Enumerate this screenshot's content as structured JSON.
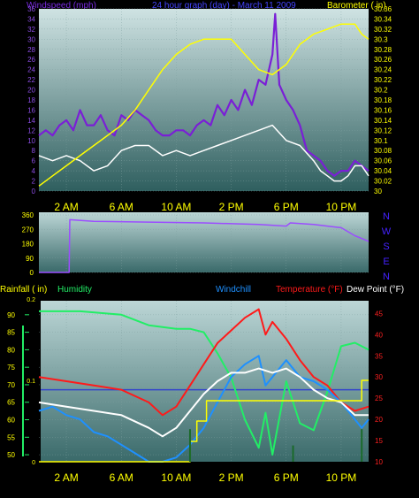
{
  "header": {
    "left": "Windspeed (mph)",
    "center": "24 hour graph (day) - March 11 2009",
    "right": "Barometer ( in)"
  },
  "colors": {
    "wind": "#8a2be2",
    "gust": "#7a1fd6",
    "wind_avg": "#ffffff",
    "barometer": "#ffff00",
    "direction": "#9b4dff",
    "humidity": "#22ee66",
    "windchill": "#1e90ff",
    "temperature": "#ff1a1a",
    "dewpoint": "#ffffff",
    "rain": "#ffff00",
    "ref_line": "#3344cc",
    "axis_text": "#ffff00",
    "grid": "#7fa0a0"
  },
  "x_axis": {
    "hours": [
      0,
      24
    ],
    "ticks": [
      {
        "h": 2,
        "label": "2 AM"
      },
      {
        "h": 6,
        "label": "6 AM"
      },
      {
        "h": 10,
        "label": "10 AM"
      },
      {
        "h": 14,
        "label": "2 PM"
      },
      {
        "h": 18,
        "label": "6 PM"
      },
      {
        "h": 22,
        "label": "10 PM"
      }
    ]
  },
  "chart_data": [
    {
      "type": "line",
      "name": "wind-barometer",
      "title": "24 hour graph (day) - March 11 2009",
      "ylabel_left": "Windspeed (mph)",
      "ylabel_right": "Barometer ( in)",
      "left_axis": {
        "ylim": [
          0,
          36
        ],
        "ticks": [
          "0",
          "2",
          "4",
          "6",
          "8",
          "10",
          "12",
          "14",
          "16",
          "18",
          "20",
          "22",
          "24",
          "26",
          "28",
          "30",
          "32",
          "34",
          "36"
        ]
      },
      "right_axis": {
        "ylim": [
          30.0,
          30.36
        ],
        "ticks": [
          "30",
          "30.02",
          "30.04",
          "30.06",
          "30.08",
          "30.1",
          "30.12",
          "30.14",
          "30.16",
          "30.18",
          "30.2",
          "30.22",
          "30.24",
          "30.26",
          "30.28",
          "30.3",
          "30.32",
          "30.34",
          "30.36"
        ]
      },
      "series": [
        {
          "key": "gust",
          "axis": "left",
          "x": [
            0,
            0.5,
            1,
            1.5,
            2,
            2.5,
            3,
            3.5,
            4,
            4.5,
            5,
            5.5,
            6,
            6.5,
            7,
            7.5,
            8,
            8.5,
            9,
            9.5,
            10,
            10.5,
            11,
            11.5,
            12,
            12.5,
            13,
            13.5,
            14,
            14.5,
            15,
            15.5,
            16,
            16.5,
            17,
            17.2,
            17.5,
            18,
            18.5,
            19,
            19.5,
            20,
            20.5,
            21,
            21.5,
            22,
            22.5,
            23,
            23.5,
            24
          ],
          "values": [
            11,
            12,
            11,
            13,
            14,
            12,
            16,
            13,
            13,
            15,
            12,
            11,
            15,
            14,
            16,
            15,
            14,
            12,
            11,
            11,
            12,
            12,
            11,
            13,
            14,
            13,
            17,
            15,
            18,
            16,
            20,
            17,
            22,
            21,
            27,
            35,
            21,
            18,
            16,
            13,
            8,
            7,
            6,
            4,
            3,
            4,
            4,
            6,
            5,
            4
          ]
        },
        {
          "key": "wind_avg",
          "axis": "left",
          "x": [
            0,
            1,
            2,
            3,
            4,
            5,
            6,
            7,
            8,
            9,
            10,
            11,
            12,
            13,
            14,
            15,
            16,
            17,
            18,
            19,
            20,
            20.5,
            21,
            21.5,
            22,
            22.5,
            23,
            23.5,
            24
          ],
          "values": [
            7,
            6,
            7,
            6,
            4,
            5,
            8,
            9,
            9,
            7,
            8,
            7,
            8,
            9,
            10,
            11,
            12,
            13,
            10,
            9,
            6,
            4,
            3,
            2,
            2,
            3,
            5,
            5,
            3
          ]
        },
        {
          "key": "barometer",
          "axis": "right",
          "x": [
            0,
            1,
            2,
            3,
            4,
            5,
            6,
            7,
            8,
            9,
            10,
            11,
            12,
            13,
            14,
            15,
            16,
            17,
            18,
            19,
            20,
            21,
            22,
            23,
            23.5,
            24
          ],
          "values": [
            30.01,
            30.03,
            30.05,
            30.07,
            30.09,
            30.11,
            30.13,
            30.16,
            30.2,
            30.24,
            30.27,
            30.29,
            30.3,
            30.3,
            30.3,
            30.27,
            30.24,
            30.23,
            30.25,
            30.29,
            30.31,
            30.32,
            30.33,
            30.33,
            30.31,
            30.3
          ]
        }
      ]
    },
    {
      "type": "line",
      "name": "wind-direction",
      "left_axis": {
        "ylim": [
          0,
          360
        ],
        "ticks": [
          "0",
          "90",
          "180",
          "270",
          "360"
        ]
      },
      "right_labels": [
        "N",
        "W",
        "S",
        "E",
        "N"
      ],
      "series": [
        {
          "key": "direction",
          "x": [
            0,
            2.2,
            2.25,
            4,
            8,
            12,
            16,
            18,
            18.3,
            20,
            21,
            22,
            23,
            24
          ],
          "values": [
            0,
            0,
            330,
            320,
            315,
            310,
            300,
            290,
            310,
            300,
            290,
            280,
            230,
            195
          ]
        }
      ]
    },
    {
      "type": "line",
      "name": "temp-humidity-rain",
      "labels": {
        "rain": "Rainfall ( in)",
        "humidity": "Humidity",
        "windchill": "Windchill",
        "temperature": "Temperature (°F)",
        "dewpoint": "Dew Point (°F)"
      },
      "left_axis": {
        "ylim": [
          48,
          94
        ],
        "ticks": [
          "50",
          "55",
          "60",
          "65",
          "70",
          "75",
          "80",
          "85",
          "90"
        ]
      },
      "rain_axis": {
        "ticks": [
          "0",
          "0.1",
          "0.2"
        ]
      },
      "right_axis": {
        "ylim": [
          10,
          48
        ],
        "ticks": [
          "10",
          "15",
          "20",
          "25",
          "30",
          "35",
          "40",
          "45"
        ]
      },
      "reference_line": {
        "value": 27,
        "axis": "right"
      },
      "series": [
        {
          "key": "humidity",
          "axis": "left",
          "x": [
            0,
            3,
            6,
            8,
            10,
            11,
            12,
            13,
            14,
            15,
            16,
            16.5,
            17,
            18,
            19,
            20,
            21,
            22,
            23,
            24
          ],
          "values": [
            91,
            91,
            90,
            87,
            86,
            86,
            85,
            79,
            72,
            60,
            52,
            62,
            50,
            71,
            59,
            57,
            68,
            81,
            82,
            80
          ]
        },
        {
          "key": "temperature",
          "axis": "right",
          "x": [
            0,
            2,
            4,
            6,
            8,
            9,
            10,
            11,
            12,
            13,
            14,
            15,
            16,
            16.5,
            17,
            18,
            19,
            20,
            21,
            22,
            23,
            24
          ],
          "values": [
            30,
            29,
            28,
            27,
            24,
            21,
            23,
            28,
            33,
            38,
            41,
            44,
            46,
            40,
            43,
            39,
            34,
            30,
            28,
            24,
            22,
            23
          ]
        },
        {
          "key": "windchill",
          "axis": "right",
          "x": [
            0,
            1,
            2,
            3,
            4,
            5,
            6,
            7,
            8,
            9,
            10,
            11,
            12,
            13,
            14,
            15,
            16,
            16.5,
            17,
            18,
            19,
            20,
            21,
            22,
            23,
            23.5,
            24
          ],
          "values": [
            22,
            23,
            21,
            20,
            17,
            16,
            14,
            12,
            10,
            10,
            11,
            14,
            18,
            24,
            30,
            33,
            35,
            28,
            30,
            34,
            30,
            29,
            27,
            24,
            20,
            18,
            20
          ]
        },
        {
          "key": "dewpoint",
          "axis": "right",
          "x": [
            0,
            2,
            4,
            6,
            8,
            9,
            10,
            11,
            12,
            13,
            14,
            15,
            16,
            17,
            18,
            19,
            20,
            21,
            22,
            23,
            24
          ],
          "values": [
            24,
            23,
            22,
            21,
            18,
            16,
            18,
            22,
            26,
            29,
            31,
            31,
            32,
            31,
            32,
            30,
            27,
            25,
            24,
            21,
            21
          ]
        },
        {
          "key": "rain",
          "axis": "rain",
          "x": [
            0,
            10.5,
            11,
            11.5,
            12,
            12.2,
            22.9,
            23,
            23.5,
            24
          ],
          "values": [
            0,
            0,
            0.025,
            0.05,
            0.05,
            0.075,
            0.075,
            0.075,
            0.1,
            0.1
          ]
        }
      ]
    }
  ]
}
